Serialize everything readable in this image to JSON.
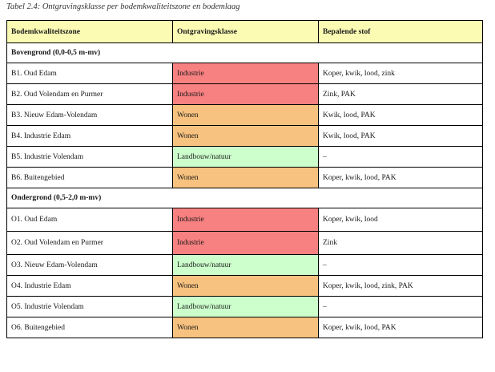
{
  "caption": "Tabel 2.4: Ontgravingsklasse per bodemkwaliteitszone en bodemlaag",
  "colors": {
    "header_bg": "#fbfbb4",
    "Industrie": "#f78080",
    "Wonen": "#f7c27f",
    "Landbouw/natuur": "#ccffcc"
  },
  "headers": [
    "Bodemkwaliteitszone",
    "Ontgravingsklasse",
    "Bepalende stof"
  ],
  "sections": [
    {
      "title": "Bovengrond (0,0-0,5 m-mv)",
      "rows": [
        {
          "zone": "B1. Oud Edam",
          "klasse": "Industrie",
          "stof": "Koper, kwik, lood, zink"
        },
        {
          "zone": "B2. Oud Volendam en Purmer",
          "klasse": "Industrie",
          "stof": "Zink, PAK"
        },
        {
          "zone": "B3. Nieuw Edam-Volendam",
          "klasse": "Wonen",
          "stof": "Kwik, lood, PAK"
        },
        {
          "zone": "B4. Industrie Edam",
          "klasse": "Wonen",
          "stof": "Kwik, lood, PAK"
        },
        {
          "zone": "B5. Industrie Volendam",
          "klasse": "Landbouw/natuur",
          "stof": "–"
        },
        {
          "zone": "B6. Buitengebied",
          "klasse": "Wonen",
          "stof": "Koper, kwik, lood, PAK"
        }
      ]
    },
    {
      "title": "Ondergrond (0,5-2,0 m-mv)",
      "rows": [
        {
          "zone": "O1. Oud Edam",
          "klasse": "Industrie",
          "stof": "Koper, kwik, lood"
        },
        {
          "zone": "O2. Oud Volendam en Purmer",
          "klasse": "Industrie",
          "stof": "Zink"
        },
        {
          "zone": "O3. Nieuw Edam-Volendam",
          "klasse": "Landbouw/natuur",
          "stof": "–"
        },
        {
          "zone": "O4. Industrie Edam",
          "klasse": "Wonen",
          "stof": "Koper, kwik, lood, zink, PAK"
        },
        {
          "zone": "O5. Industrie Volendam",
          "klasse": "Landbouw/natuur",
          "stof": "–"
        },
        {
          "zone": "O6. Buitengebied",
          "klasse": "Wonen",
          "stof": "Koper, kwik, lood, PAK"
        }
      ]
    }
  ]
}
